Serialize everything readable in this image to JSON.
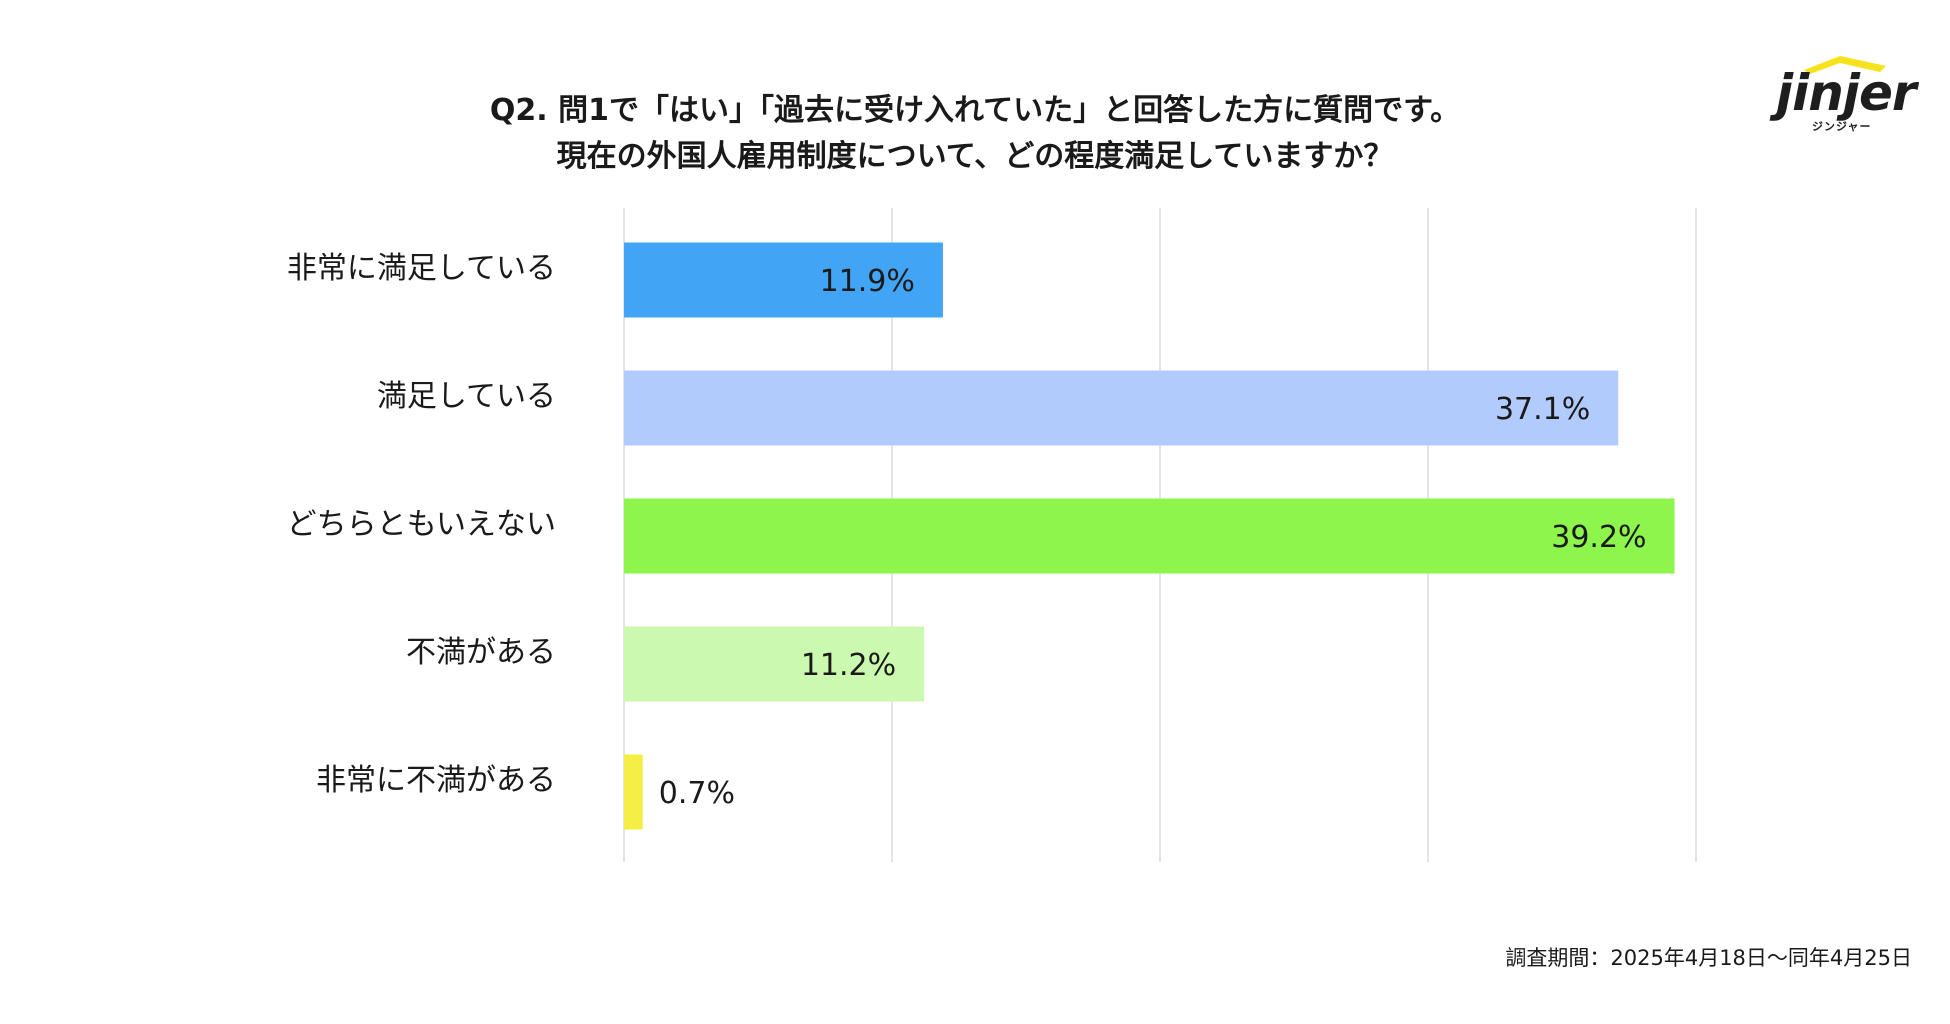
{
  "chart_data": {
    "type": "bar",
    "orientation": "horizontal",
    "title": "Q2. 問1で「はい」「過去に受け入れていた」と回答した方に質問です。",
    "subtitle": "現在の外国人雇用制度について、どの程度満足していますか？",
    "categories": [
      "非常に満足している",
      "満足している",
      "どちらともいえない",
      "不満がある",
      "非常に不満がある"
    ],
    "values": [
      11.9,
      37.1,
      39.2,
      11.2,
      0.7
    ],
    "value_labels": [
      "11.9%",
      "37.1%",
      "39.2%",
      "11.2%",
      "0.7%"
    ],
    "colors": [
      "#42a4f5",
      "#b2cbfd",
      "#8ef54d",
      "#ccf9b0",
      "#f5ef45"
    ],
    "xlim": [
      0,
      40
    ],
    "grid": true,
    "xlabel": "",
    "ylabel": ""
  },
  "brand": {
    "logo_text": "jinjer",
    "logo_sub": "ジンジャー",
    "roof_color": "#f7e31c"
  },
  "footnote": "調査期間：2025年4月18日〜同年4月25日"
}
